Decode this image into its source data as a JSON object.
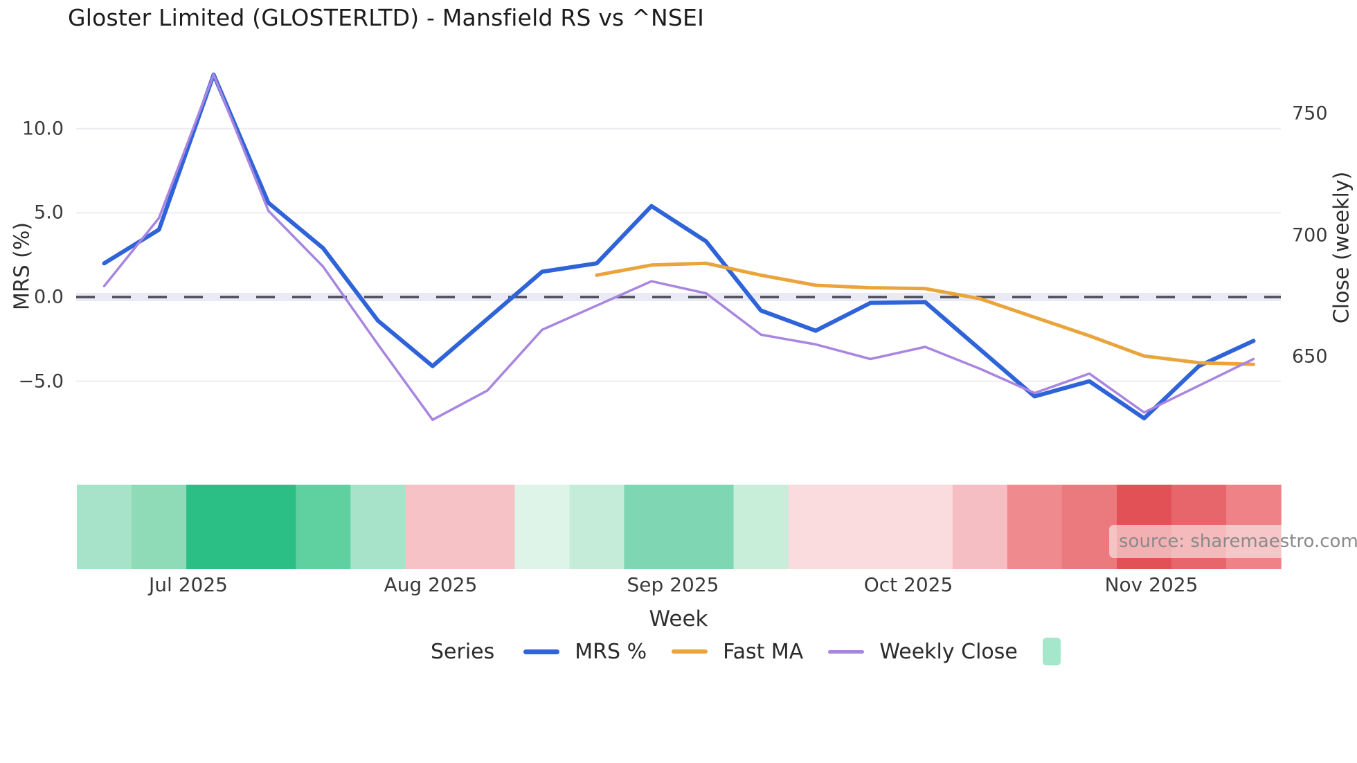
{
  "title": "Gloster Limited (GLOSTERLTD) - Mansfield RS vs ^NSEI",
  "source_watermark": "source: sharemaestro.com",
  "legend": {
    "series_label": "Series",
    "items": [
      {
        "label": "MRS %",
        "color": "#2f63d8",
        "type": "line"
      },
      {
        "label": "Fast MA",
        "color": "#e9a43b",
        "type": "line"
      },
      {
        "label": "Weekly Close",
        "color": "#a885e0",
        "type": "line"
      },
      {
        "label": "",
        "color": "#a5e7cb",
        "type": "square"
      }
    ]
  },
  "chart_data": {
    "type": "line",
    "title": "Gloster Limited (GLOSTERLTD) - Mansfield RS vs ^NSEI",
    "xlabel": "Week",
    "x_tick_labels": [
      "Jul 2025",
      "Aug 2025",
      "Sep 2025",
      "Oct 2025",
      "Nov 2025"
    ],
    "x_tick_week_positions": [
      1.54,
      5.97,
      10.4,
      14.7,
      19.13
    ],
    "n_weeks": 22,
    "left_axis": {
      "label": "MRS (%)",
      "ticks": [
        10.0,
        5.0,
        0.0,
        -5.0
      ],
      "tick_labels": [
        "10.0",
        "5.0",
        "0.0",
        "−5.0"
      ]
    },
    "right_axis": {
      "label": "Close (weekly)",
      "ticks": [
        750,
        700,
        650
      ],
      "tick_labels": [
        "750",
        "700",
        "650"
      ]
    },
    "grid": true,
    "grid_color": "#ececf2",
    "zero_line": {
      "dash_color": "#4c4c58",
      "track_color": "#e9eaf5"
    },
    "legend_position": "bottom",
    "series": [
      {
        "name": "MRS %",
        "axis": "left",
        "color": "#2f63d8",
        "width": 6,
        "start_index": 0,
        "values": [
          2.0,
          4.0,
          13.2,
          5.6,
          2.9,
          -1.4,
          -4.1,
          -1.3,
          1.5,
          2.0,
          5.4,
          3.3,
          -0.8,
          -2.0,
          -0.35,
          -0.3,
          -3.1,
          -5.9,
          -5.0,
          -7.2,
          -4.1,
          -2.6
        ]
      },
      {
        "name": "Fast MA",
        "axis": "left",
        "color": "#e9a43b",
        "width": 5,
        "start_index": 9,
        "values": [
          1.3,
          1.9,
          2.0,
          1.3,
          0.7,
          0.55,
          0.5,
          -0.1,
          -1.2,
          -2.3,
          -3.5,
          -3.9,
          -4.0
        ]
      },
      {
        "name": "Weekly Close",
        "axis": "right",
        "color": "#a885e0",
        "width": 3.5,
        "start_index": 0,
        "values": [
          679,
          707,
          766,
          710,
          687,
          655,
          624,
          636,
          661,
          671,
          681,
          676,
          659,
          655,
          649,
          654,
          645,
          635,
          643,
          627,
          638,
          649
        ]
      }
    ],
    "heatmap_band": {
      "legend_color": "#a5e7cb",
      "cell_colors": [
        "#a7e3c8",
        "#90dbb7",
        "#2bbf85",
        "#2bbf85",
        "#5fd0a0",
        "#a7e3c8",
        "#f6c2c6",
        "#f6c2c6",
        "#def4e9",
        "#c5ecd9",
        "#7ed7b2",
        "#7ed7b2",
        "#c8eeda",
        "#fadbde",
        "#fadbde",
        "#fadbde",
        "#f5bec3",
        "#ef8a8f",
        "#eb7a7f",
        "#e25156",
        "#e7666b",
        "#ee8287"
      ]
    }
  }
}
